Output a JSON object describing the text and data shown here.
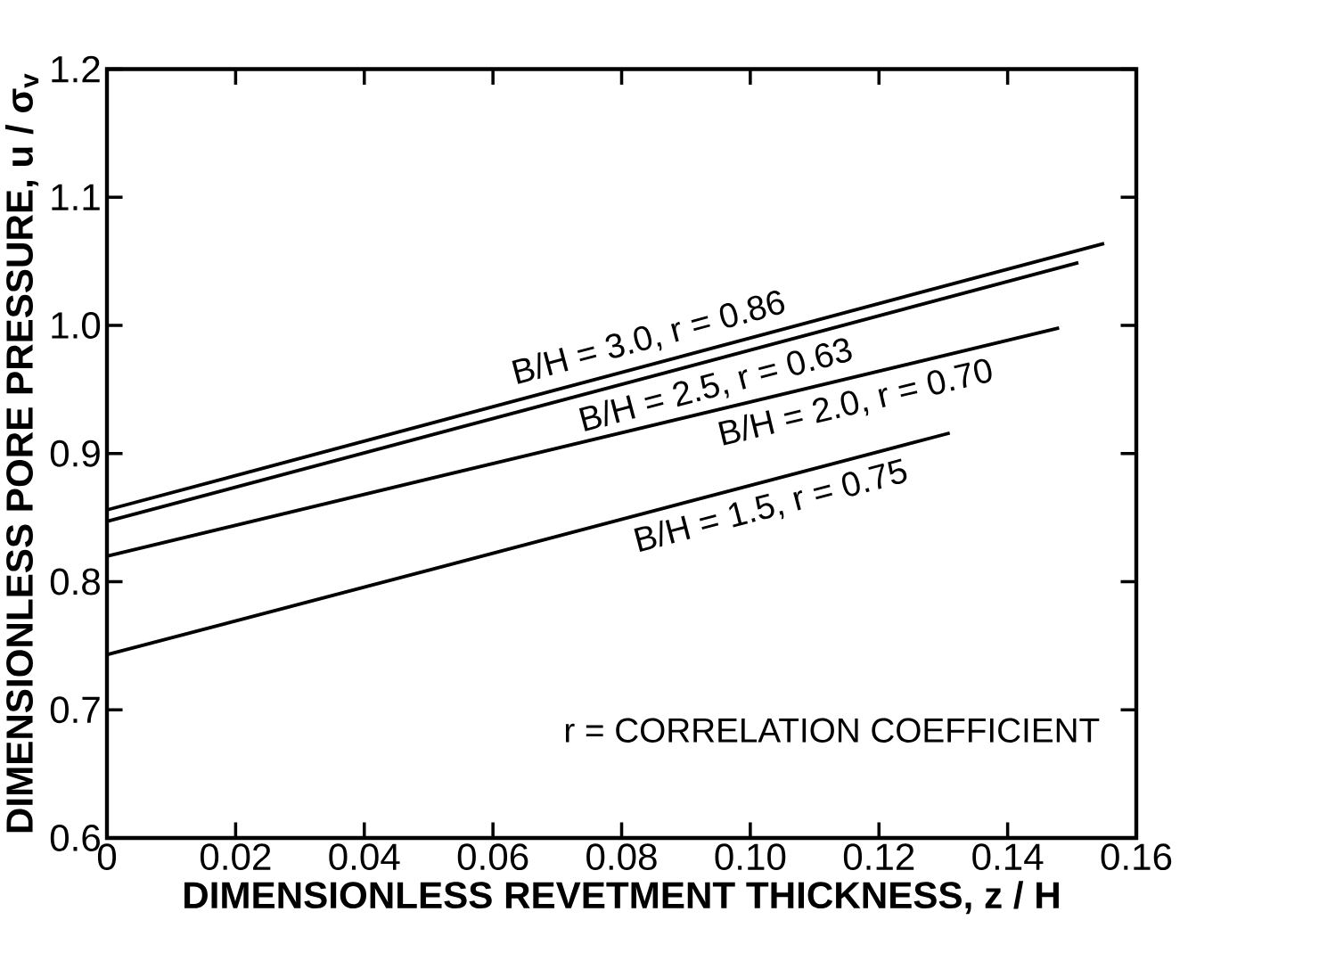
{
  "chart_data": {
    "type": "line",
    "xlabel": "DIMENSIONLESS   REVETMENT   THICKNESS,  z / H",
    "ylabel": "DIMENSIONLESS   PORE   PRESSURE,  u / σ$_{v}$",
    "xlim": [
      0,
      0.16
    ],
    "ylim": [
      0.6,
      1.2
    ],
    "xticks": [
      0,
      {
        "value": 0.02,
        "label": "0.02"
      },
      {
        "value": 0.04,
        "label": "0.04"
      },
      {
        "value": 0.06,
        "label": "0.06"
      },
      {
        "value": 0.08,
        "label": "0.08"
      },
      {
        "value": 0.1,
        "label": "0.10"
      },
      {
        "value": 0.12,
        "label": "0.12"
      },
      {
        "value": 0.14,
        "label": "0.14"
      },
      {
        "value": 0.16,
        "label": "0.16"
      }
    ],
    "yticks": [
      0.6,
      0.7,
      0.8,
      0.9,
      {
        "value": 1.0,
        "label": "1.0"
      },
      1.1,
      1.2
    ],
    "grid": false,
    "legend": false,
    "marker": "none",
    "line_style": "solid",
    "series": [
      {
        "name": "B/H = 3.0,   r = 0.86",
        "color": "#000000",
        "x": [
          0,
          0.155
        ],
        "values": [
          0.856,
          1.064
        ]
      },
      {
        "name": "B/H = 2.5,   r = 0.63",
        "color": "#000000",
        "x": [
          0,
          0.151
        ],
        "values": [
          0.847,
          1.049
        ]
      },
      {
        "name": "B/H = 2.0,   r = 0.70",
        "color": "#000000",
        "x": [
          0,
          0.148
        ],
        "values": [
          0.82,
          0.998
        ]
      },
      {
        "name": "B/H = 1.5,   r = 0.75",
        "color": "#000000",
        "x": [
          0,
          0.131
        ],
        "values": [
          0.743,
          0.916
        ]
      }
    ],
    "annotations": [
      "r = CORRELATION   COEFFICIENT"
    ]
  }
}
